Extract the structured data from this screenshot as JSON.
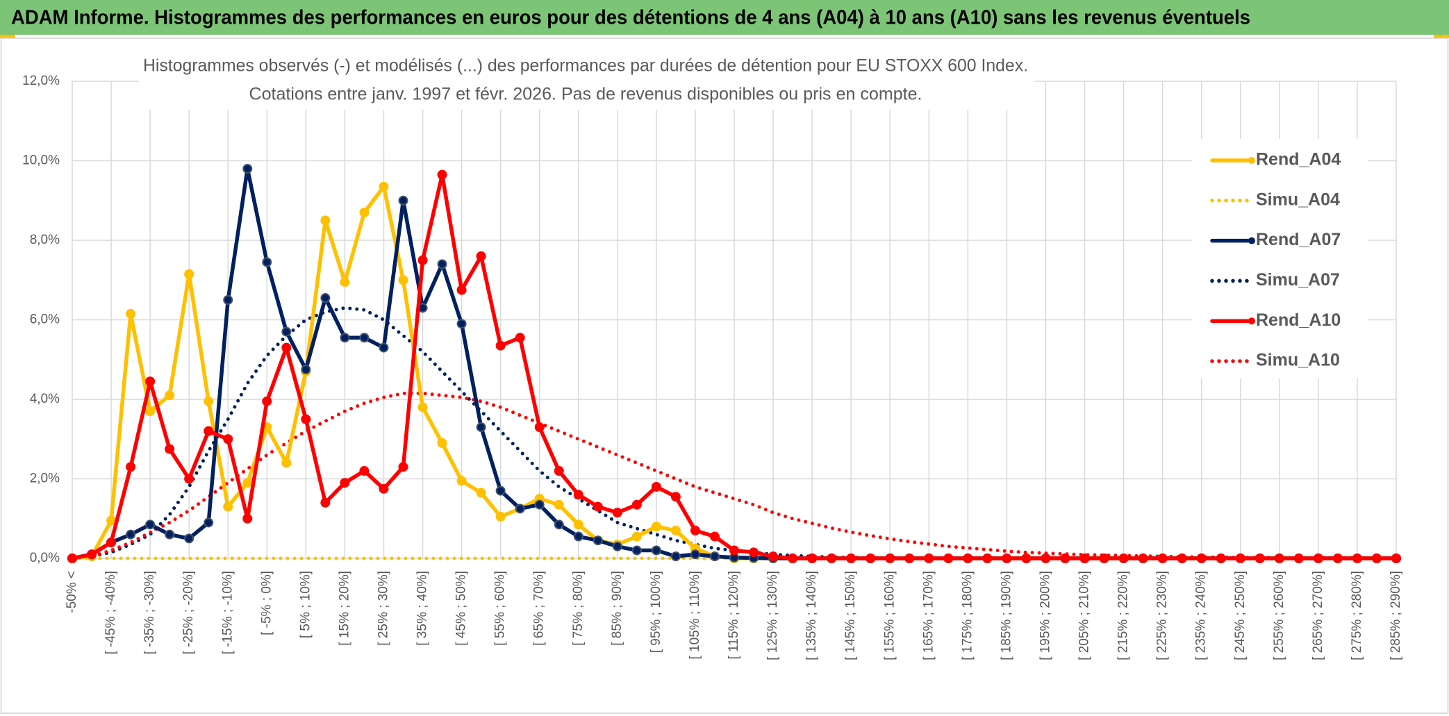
{
  "chart_data": {
    "type": "line",
    "title": "ADAM Informe. Histogrammes des performances en euros pour des détentions de 4 ans (A04) à 10 ans (A10) sans les revenus éventuels",
    "subtitle": [
      "Histogrammes observés (-) et modélisés (...) des performances par durées de détention pour EU STOXX 600 Index.",
      "Cotations entre janv. 1997 et févr. 2026. Pas de revenus disponibles ou pris en compte."
    ],
    "categories": [
      "-50% <",
      null,
      "[ -45% ; -40%]",
      null,
      "[ -35% ; -30%]",
      null,
      "[ -25% ; -20%]",
      null,
      "[ -15% ; -10%]",
      null,
      "[ -5% ; 0%]",
      null,
      "[ 5% ; 10%]",
      null,
      "[ 15% ; 20%]",
      null,
      "[ 25% ; 30%]",
      null,
      "[ 35% ; 40%]",
      null,
      "[ 45% ; 50%]",
      null,
      "[ 55% ; 60%]",
      null,
      "[ 65% ; 70%]",
      null,
      "[ 75% ; 80%]",
      null,
      "[ 85% ; 90%]",
      null,
      "[ 95% ; 100%]",
      null,
      "[ 105% ; 110%]",
      null,
      "[ 115% ; 120%]",
      null,
      "[ 125% ; 130%]",
      null,
      "[ 135% ; 140%]",
      null,
      "[ 145% ; 150%]",
      null,
      "[ 155% ; 160%]",
      null,
      "[ 165% ; 170%]",
      null,
      "[ 175% ; 180%]",
      null,
      "[ 185% ; 190%]",
      null,
      "[ 195% ; 200%]",
      null,
      "[ 205% ; 210%]",
      null,
      "[ 215% ; 220%]",
      null,
      "[ 225% ; 230%]",
      null,
      "[ 235% ; 240%]",
      null,
      "[ 245% ; 250%]",
      null,
      "[ 255% ; 260%]",
      null,
      "[ 265% ; 270%]",
      null,
      "[ 275% ; 280%]",
      null,
      "[ 285% ; 290%]"
    ],
    "series": [
      {
        "name": "Rend_A04",
        "color": "#ffc000",
        "line_style": "solid",
        "markers": true,
        "values": [
          0,
          0.05,
          0.95,
          6.15,
          3.7,
          4.1,
          7.15,
          3.95,
          1.3,
          1.9,
          3.3,
          2.4,
          4.7,
          8.5,
          6.95,
          8.7,
          9.35,
          7.0,
          3.8,
          2.9,
          1.95,
          1.65,
          1.05,
          1.25,
          1.5,
          1.35,
          0.85,
          0.45,
          0.35,
          0.55,
          0.8,
          0.7,
          0.25,
          0.05,
          0,
          0,
          0,
          0,
          0,
          0,
          0,
          0,
          0,
          0,
          0,
          0,
          0,
          0,
          0,
          0,
          0,
          0,
          0,
          0,
          0,
          0,
          0,
          0,
          0,
          0,
          0,
          0,
          0,
          0,
          0,
          0,
          0,
          0,
          0
        ]
      },
      {
        "name": "Simu_A04",
        "color": "#ffc000",
        "line_style": "dotted",
        "markers": false,
        "values": [
          0,
          0,
          0,
          0,
          0,
          0,
          0,
          0,
          0,
          0,
          0,
          0,
          0,
          0,
          0,
          0,
          0,
          0,
          0,
          0,
          0,
          0,
          0,
          0,
          0,
          0,
          0,
          0,
          0,
          0,
          0,
          0,
          0,
          0,
          0,
          0,
          0,
          0,
          0,
          0,
          0,
          0,
          0,
          0,
          0,
          0,
          0,
          0,
          0,
          0,
          0,
          0,
          0,
          0,
          0,
          0,
          0,
          0,
          0,
          0,
          0,
          0,
          0,
          0,
          0,
          0,
          0,
          0,
          0
        ]
      },
      {
        "name": "Rend_A07",
        "color": "#002060",
        "line_style": "solid",
        "markers": true,
        "values": [
          0,
          0.1,
          0.4,
          0.6,
          0.85,
          0.6,
          0.5,
          0.9,
          6.5,
          9.8,
          7.45,
          5.7,
          4.75,
          6.55,
          5.55,
          5.55,
          5.3,
          9.0,
          6.3,
          7.4,
          5.9,
          3.3,
          1.7,
          1.25,
          1.35,
          0.85,
          0.55,
          0.45,
          0.3,
          0.2,
          0.2,
          0.05,
          0.1,
          0.05,
          0.02,
          0.01,
          0,
          0,
          0,
          0,
          0,
          0,
          0,
          0,
          0,
          0,
          0,
          0,
          0,
          0,
          0,
          0,
          0,
          0,
          0,
          0,
          0,
          0,
          0,
          0,
          0,
          0,
          0,
          0,
          0,
          0,
          0,
          0,
          0
        ]
      },
      {
        "name": "Simu_A07",
        "color": "#002060",
        "line_style": "dotted",
        "markers": false,
        "values": [
          0,
          0.05,
          0.15,
          0.35,
          0.6,
          1.1,
          1.8,
          2.7,
          3.5,
          4.4,
          5.1,
          5.6,
          6.0,
          6.2,
          6.3,
          6.25,
          6.0,
          5.6,
          5.2,
          4.7,
          4.2,
          3.7,
          3.2,
          2.7,
          2.2,
          1.8,
          1.5,
          1.2,
          0.9,
          0.75,
          0.6,
          0.45,
          0.35,
          0.25,
          0.2,
          0.15,
          0.1,
          0.07,
          0.05,
          0.03,
          0.02,
          0.01,
          0,
          0,
          0,
          0,
          0,
          0,
          0,
          0,
          0,
          0,
          0,
          0,
          0,
          0,
          0,
          0,
          0,
          0,
          0,
          0,
          0,
          0,
          0,
          0,
          0,
          0,
          0
        ]
      },
      {
        "name": "Rend_A10",
        "color": "#ff0000",
        "line_style": "solid",
        "markers": true,
        "values": [
          0,
          0.1,
          0.4,
          2.3,
          4.45,
          2.75,
          2.0,
          3.2,
          3.0,
          1.0,
          3.95,
          5.3,
          3.5,
          1.4,
          1.9,
          2.2,
          1.75,
          2.3,
          7.5,
          9.65,
          6.75,
          7.6,
          5.35,
          5.55,
          3.3,
          2.2,
          1.6,
          1.3,
          1.15,
          1.35,
          1.8,
          1.55,
          0.7,
          0.55,
          0.2,
          0.15,
          0.05,
          0,
          0,
          0,
          0,
          0,
          0,
          0,
          0,
          0,
          0,
          0,
          0,
          0,
          0,
          0,
          0,
          0,
          0,
          0,
          0,
          0,
          0,
          0,
          0,
          0,
          0,
          0,
          0,
          0,
          0,
          0,
          0
        ]
      },
      {
        "name": "Simu_A10",
        "color": "#ff0000",
        "line_style": "dotted",
        "markers": false,
        "values": [
          0,
          0.05,
          0.2,
          0.4,
          0.65,
          0.9,
          1.2,
          1.55,
          1.9,
          2.25,
          2.6,
          2.9,
          3.2,
          3.45,
          3.7,
          3.9,
          4.05,
          4.15,
          4.15,
          4.1,
          4.05,
          3.95,
          3.8,
          3.6,
          3.4,
          3.2,
          3.0,
          2.8,
          2.6,
          2.4,
          2.2,
          2.0,
          1.8,
          1.65,
          1.5,
          1.35,
          1.15,
          1.0,
          0.88,
          0.76,
          0.66,
          0.57,
          0.49,
          0.42,
          0.36,
          0.3,
          0.26,
          0.22,
          0.18,
          0.15,
          0.13,
          0.11,
          0.09,
          0.08,
          0.07,
          0.06,
          0.05,
          0.04,
          0.03,
          0.03,
          0.02,
          0.02,
          0.02,
          0.01,
          0.01,
          0.01,
          0.01,
          0.01,
          0.01
        ]
      }
    ],
    "ylim": [
      0,
      12
    ],
    "yticks": [
      {
        "value": 0,
        "label": "0,0%"
      },
      {
        "value": 2,
        "label": "2,0%"
      },
      {
        "value": 4,
        "label": "4,0%"
      },
      {
        "value": 6,
        "label": "6,0%"
      },
      {
        "value": 8,
        "label": "8,0%"
      },
      {
        "value": 10,
        "label": "10,0%"
      },
      {
        "value": 12,
        "label": "12,0%"
      }
    ],
    "grid": true,
    "legend": "right"
  }
}
